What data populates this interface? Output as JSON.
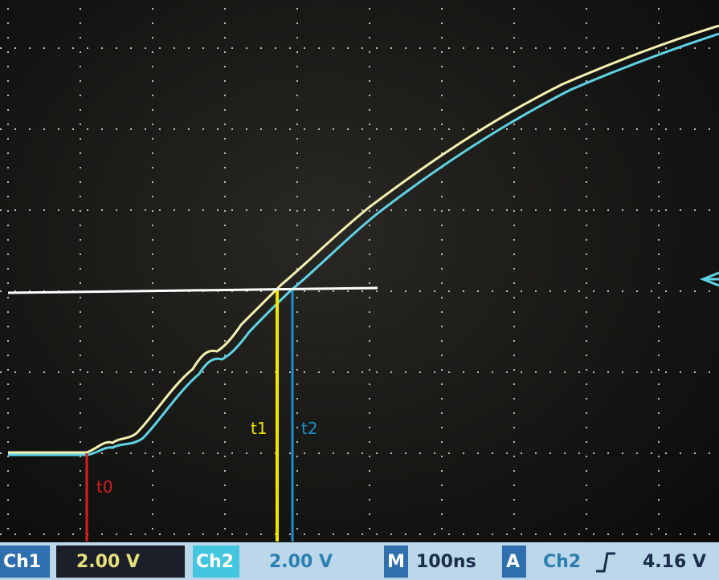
{
  "annotations": {
    "t0": "t0",
    "t1": "t1",
    "t2": "t2"
  },
  "status_bar": {
    "ch1_label": "Ch1",
    "ch1_scale": "2.00 V",
    "ch2_label": "Ch2",
    "ch2_scale": "2.00 V",
    "time_label": "M",
    "time_scale": "100ns",
    "trigger_label": "A",
    "trigger_source": "Ch2",
    "trigger_level": "4.16 V"
  }
}
